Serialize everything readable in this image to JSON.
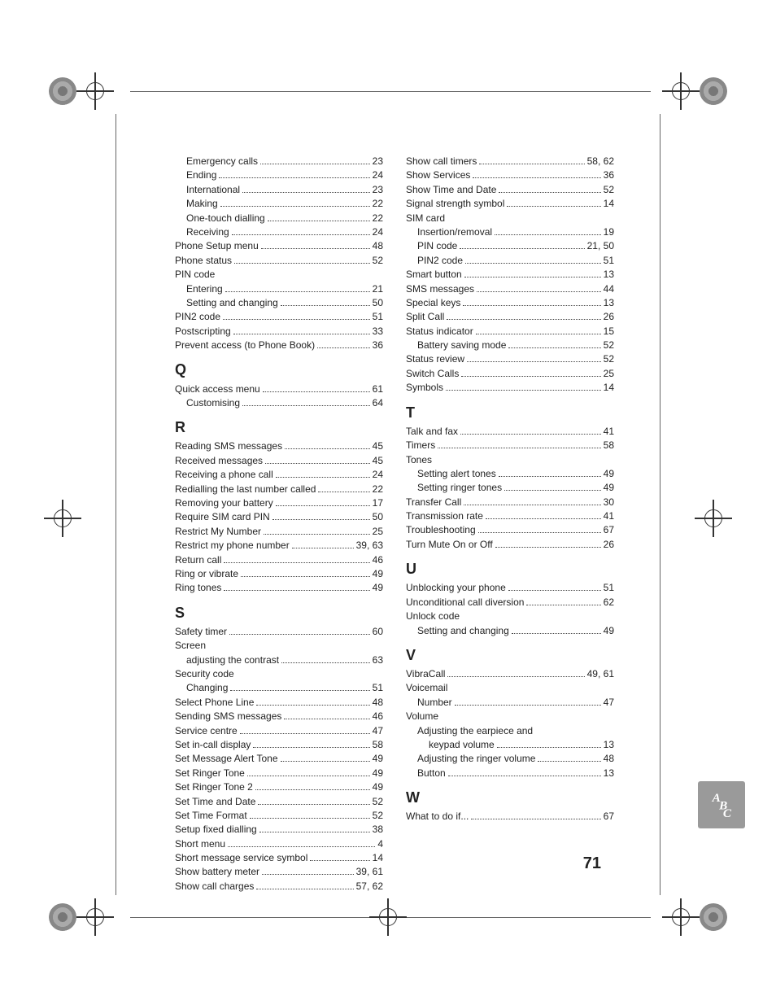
{
  "page_number": "71",
  "left_column": [
    {
      "type": "row",
      "indent": 1,
      "label": "Emergency calls",
      "page": "23"
    },
    {
      "type": "row",
      "indent": 1,
      "label": "Ending",
      "page": "24"
    },
    {
      "type": "row",
      "indent": 1,
      "label": "International",
      "page": "23"
    },
    {
      "type": "row",
      "indent": 1,
      "label": "Making",
      "page": "22"
    },
    {
      "type": "row",
      "indent": 1,
      "label": "One-touch dialling",
      "page": "22"
    },
    {
      "type": "row",
      "indent": 1,
      "label": "Receiving",
      "page": "24"
    },
    {
      "type": "row",
      "indent": 0,
      "label": "Phone Setup menu",
      "page": "48"
    },
    {
      "type": "row",
      "indent": 0,
      "label": "Phone status",
      "page": "52"
    },
    {
      "type": "nopage",
      "indent": 0,
      "label": "PIN code"
    },
    {
      "type": "row",
      "indent": 1,
      "label": "Entering",
      "page": "21"
    },
    {
      "type": "row",
      "indent": 1,
      "label": "Setting and changing",
      "page": "50"
    },
    {
      "type": "row",
      "indent": 0,
      "label": "PIN2 code",
      "page": "51"
    },
    {
      "type": "row",
      "indent": 0,
      "label": "Postscripting",
      "page": "33"
    },
    {
      "type": "row",
      "indent": 0,
      "label": "Prevent access (to Phone Book)",
      "page": "36"
    },
    {
      "type": "head",
      "label": "Q"
    },
    {
      "type": "row",
      "indent": 0,
      "label": "Quick access menu",
      "page": "61"
    },
    {
      "type": "row",
      "indent": 1,
      "label": "Customising",
      "page": "64"
    },
    {
      "type": "head",
      "label": "R"
    },
    {
      "type": "row",
      "indent": 0,
      "label": "Reading SMS messages",
      "page": "45"
    },
    {
      "type": "row",
      "indent": 0,
      "label": "Received messages",
      "page": "45"
    },
    {
      "type": "row",
      "indent": 0,
      "label": "Receiving a phone call",
      "page": "24"
    },
    {
      "type": "row",
      "indent": 0,
      "label": "Redialling the last number called",
      "page": "22"
    },
    {
      "type": "row",
      "indent": 0,
      "label": "Removing your battery",
      "page": "17"
    },
    {
      "type": "row",
      "indent": 0,
      "label": "Require SIM card PIN",
      "page": "50"
    },
    {
      "type": "row",
      "indent": 0,
      "label": "Restrict My Number",
      "page": "25"
    },
    {
      "type": "row",
      "indent": 0,
      "label": "Restrict my phone number",
      "page": "39, 63"
    },
    {
      "type": "row",
      "indent": 0,
      "label": "Return call",
      "page": "46"
    },
    {
      "type": "row",
      "indent": 0,
      "label": "Ring or vibrate",
      "page": "49"
    },
    {
      "type": "row",
      "indent": 0,
      "label": "Ring tones",
      "page": "49"
    },
    {
      "type": "head",
      "label": "S"
    },
    {
      "type": "row",
      "indent": 0,
      "label": "Safety timer",
      "page": "60"
    },
    {
      "type": "nopage",
      "indent": 0,
      "label": "Screen"
    },
    {
      "type": "row",
      "indent": 1,
      "label": "adjusting the contrast",
      "page": "63"
    },
    {
      "type": "nopage",
      "indent": 0,
      "label": "Security code"
    },
    {
      "type": "row",
      "indent": 1,
      "label": "Changing",
      "page": "51"
    },
    {
      "type": "row",
      "indent": 0,
      "label": "Select Phone Line",
      "page": "48"
    },
    {
      "type": "row",
      "indent": 0,
      "label": "Sending SMS messages",
      "page": "46"
    },
    {
      "type": "row",
      "indent": 0,
      "label": "Service centre",
      "page": "47"
    },
    {
      "type": "row",
      "indent": 0,
      "label": "Set in-call display",
      "page": "58"
    },
    {
      "type": "row",
      "indent": 0,
      "label": "Set Message Alert Tone",
      "page": "49"
    },
    {
      "type": "row",
      "indent": 0,
      "label": "Set Ringer Tone",
      "page": "49"
    },
    {
      "type": "row",
      "indent": 0,
      "label": "Set Ringer Tone 2",
      "page": "49"
    },
    {
      "type": "row",
      "indent": 0,
      "label": "Set Time and Date",
      "page": "52"
    },
    {
      "type": "row",
      "indent": 0,
      "label": "Set Time Format",
      "page": "52"
    },
    {
      "type": "row",
      "indent": 0,
      "label": "Setup fixed dialling",
      "page": "38"
    },
    {
      "type": "row",
      "indent": 0,
      "label": "Short menu",
      "page": "4"
    },
    {
      "type": "row",
      "indent": 0,
      "label": "Short message service symbol",
      "page": "14"
    },
    {
      "type": "row",
      "indent": 0,
      "label": "Show battery meter",
      "page": "39, 61"
    },
    {
      "type": "row",
      "indent": 0,
      "label": "Show call charges",
      "page": "57, 62"
    }
  ],
  "right_column": [
    {
      "type": "row",
      "indent": 0,
      "label": "Show call timers",
      "page": "58, 62"
    },
    {
      "type": "row",
      "indent": 0,
      "label": "Show Services",
      "page": "36"
    },
    {
      "type": "row",
      "indent": 0,
      "label": "Show Time and Date",
      "page": "52"
    },
    {
      "type": "row",
      "indent": 0,
      "label": "Signal strength symbol",
      "page": "14"
    },
    {
      "type": "nopage",
      "indent": 0,
      "label": "SIM card"
    },
    {
      "type": "row",
      "indent": 1,
      "label": "Insertion/removal",
      "page": "19"
    },
    {
      "type": "row",
      "indent": 1,
      "label": "PIN code",
      "page": "21, 50"
    },
    {
      "type": "row",
      "indent": 1,
      "label": "PIN2 code",
      "page": "51"
    },
    {
      "type": "row",
      "indent": 0,
      "label": "Smart button",
      "page": "13"
    },
    {
      "type": "row",
      "indent": 0,
      "label": "SMS messages",
      "page": "44"
    },
    {
      "type": "row",
      "indent": 0,
      "label": "Special keys",
      "page": "13"
    },
    {
      "type": "row",
      "indent": 0,
      "label": "Split Call",
      "page": "26"
    },
    {
      "type": "row",
      "indent": 0,
      "label": "Status indicator",
      "page": "15"
    },
    {
      "type": "row",
      "indent": 1,
      "label": "Battery saving mode",
      "page": "52"
    },
    {
      "type": "row",
      "indent": 0,
      "label": "Status review",
      "page": "52"
    },
    {
      "type": "row",
      "indent": 0,
      "label": "Switch Calls",
      "page": "25"
    },
    {
      "type": "row",
      "indent": 0,
      "label": "Symbols",
      "page": "14"
    },
    {
      "type": "head",
      "label": "T"
    },
    {
      "type": "row",
      "indent": 0,
      "label": "Talk and fax",
      "page": "41"
    },
    {
      "type": "row",
      "indent": 0,
      "label": "Timers",
      "page": "58"
    },
    {
      "type": "nopage",
      "indent": 0,
      "label": "Tones"
    },
    {
      "type": "row",
      "indent": 1,
      "label": "Setting alert tones",
      "page": "49"
    },
    {
      "type": "row",
      "indent": 1,
      "label": "Setting ringer tones",
      "page": "49"
    },
    {
      "type": "row",
      "indent": 0,
      "label": "Transfer Call",
      "page": "30"
    },
    {
      "type": "row",
      "indent": 0,
      "label": "Transmission rate",
      "page": "41"
    },
    {
      "type": "row",
      "indent": 0,
      "label": "Troubleshooting",
      "page": "67"
    },
    {
      "type": "row",
      "indent": 0,
      "label": "Turn Mute On or Off",
      "page": "26"
    },
    {
      "type": "head",
      "label": "U"
    },
    {
      "type": "row",
      "indent": 0,
      "label": "Unblocking your phone",
      "page": "51"
    },
    {
      "type": "row",
      "indent": 0,
      "label": "Unconditional call diversion",
      "page": "62"
    },
    {
      "type": "nopage",
      "indent": 0,
      "label": "Unlock code"
    },
    {
      "type": "row",
      "indent": 1,
      "label": "Setting and changing",
      "page": "49"
    },
    {
      "type": "head",
      "label": "V"
    },
    {
      "type": "row",
      "indent": 0,
      "label": "VibraCall",
      "page": "49, 61"
    },
    {
      "type": "nopage",
      "indent": 0,
      "label": "Voicemail"
    },
    {
      "type": "row",
      "indent": 1,
      "label": "Number",
      "page": "47"
    },
    {
      "type": "nopage",
      "indent": 0,
      "label": "Volume"
    },
    {
      "type": "nopage",
      "indent": 1,
      "label": "Adjusting the earpiece and"
    },
    {
      "type": "row",
      "indent": 2,
      "label": "keypad volume",
      "page": "13"
    },
    {
      "type": "row",
      "indent": 1,
      "label": "Adjusting the ringer volume",
      "page": "48"
    },
    {
      "type": "row",
      "indent": 1,
      "label": "Button",
      "page": "13"
    },
    {
      "type": "head",
      "label": "W"
    },
    {
      "type": "row",
      "indent": 0,
      "label": "What to do if...",
      "page": "67"
    }
  ]
}
